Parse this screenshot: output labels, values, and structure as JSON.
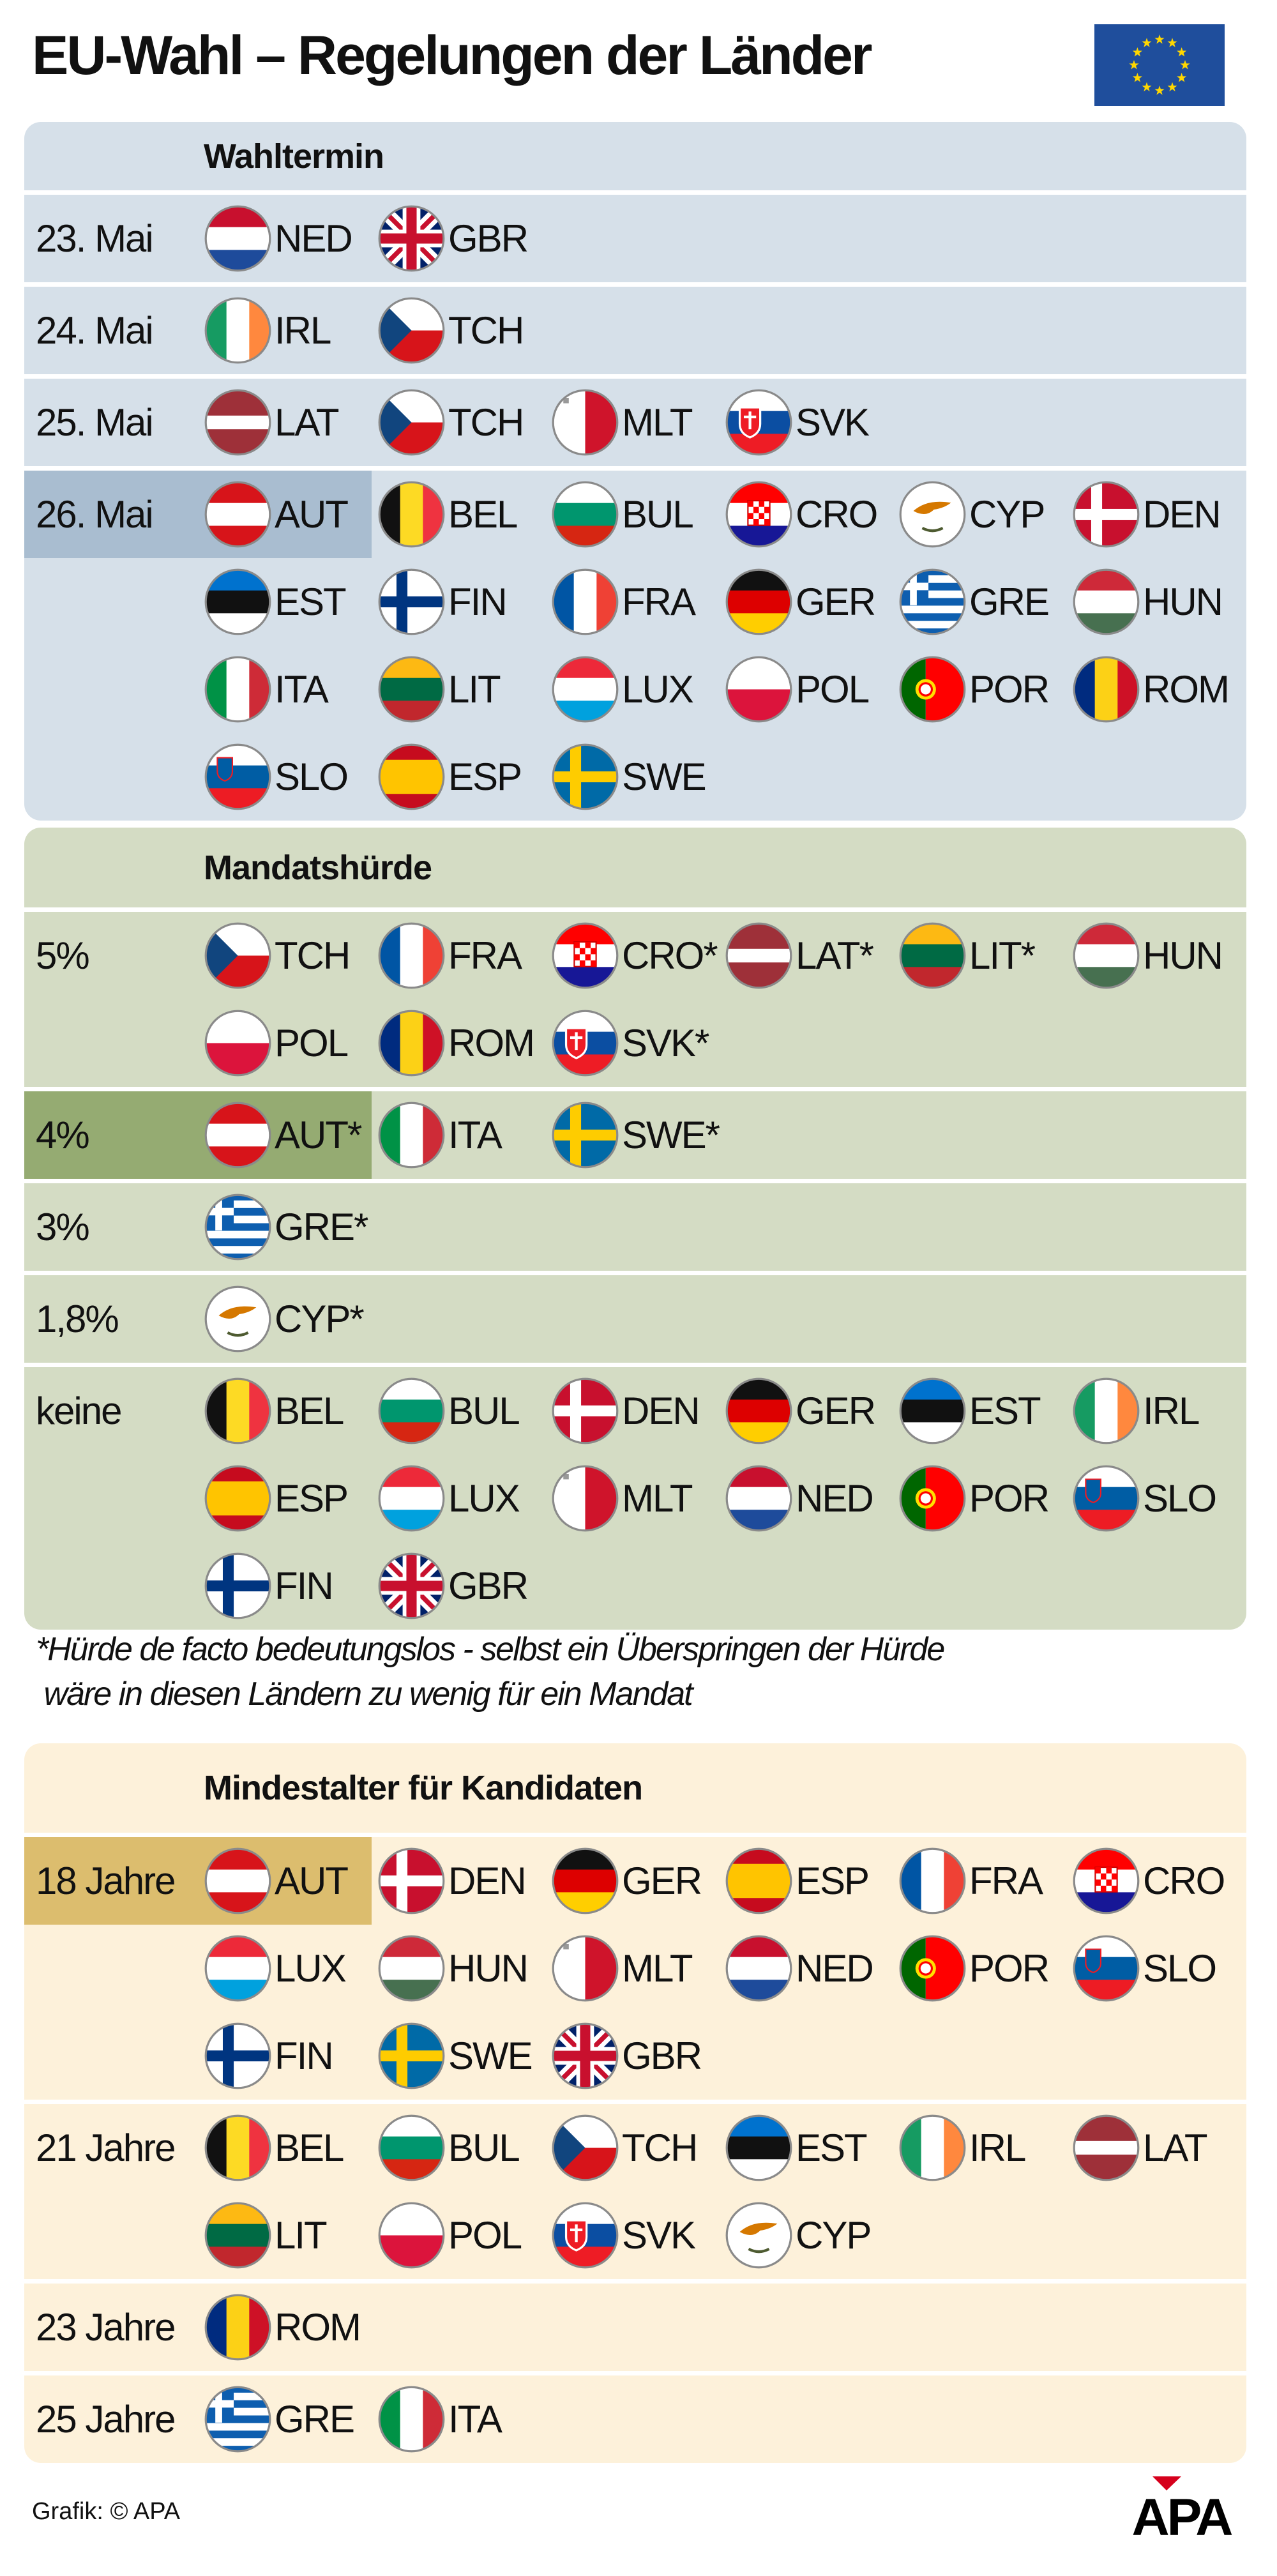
{
  "title": "EU-Wahl – Regelungen der Länder",
  "sections": [
    {
      "heading": "Wahltermin",
      "bg": "#d6e0e9",
      "highlight": "#a9bdd0",
      "rows": [
        {
          "label": "23. Mai",
          "countries": [
            "NED",
            "GBR"
          ]
        },
        {
          "label": "24. Mai",
          "countries": [
            "IRL",
            "TCH"
          ]
        },
        {
          "label": "25. Mai",
          "countries": [
            "LAT",
            "TCH",
            "MLT",
            "SVK"
          ]
        },
        {
          "label": "26. Mai",
          "highlighted": true,
          "countries": [
            "AUT",
            "BEL",
            "BUL",
            "CRO",
            "CYP",
            "DEN",
            "EST",
            "FIN",
            "FRA",
            "GER",
            "GRE",
            "HUN",
            "ITA",
            "LIT",
            "LUX",
            "POL",
            "POR",
            "ROM",
            "SLO",
            "ESP",
            "SWE"
          ]
        }
      ]
    },
    {
      "heading": "Mandatshürde",
      "bg": "#d4dcc4",
      "highlight": "#95ab72",
      "rows": [
        {
          "label": "5%",
          "countries": [
            "TCH",
            "FRA",
            "CRO*",
            "LAT*",
            "LIT*",
            "HUN",
            "POL",
            "ROM",
            "SVK*"
          ]
        },
        {
          "label": "4%",
          "highlighted": true,
          "countries": [
            "AUT*",
            "ITA",
            "SWE*"
          ]
        },
        {
          "label": "3%",
          "countries": [
            "GRE*"
          ]
        },
        {
          "label": "1,8%",
          "countries": [
            "CYP*"
          ]
        },
        {
          "label": "keine",
          "countries": [
            "BEL",
            "BUL",
            "DEN",
            "GER",
            "EST",
            "IRL",
            "ESP",
            "LUX",
            "MLT",
            "NED",
            "POR",
            "SLO",
            "FIN",
            "GBR"
          ]
        }
      ]
    },
    {
      "heading": "Mindestalter für Kandidaten",
      "bg": "#fdf1da",
      "highlight": "#dcbd6e",
      "rows": [
        {
          "label": "18 Jahre",
          "highlighted": true,
          "countries": [
            "AUT",
            "DEN",
            "GER",
            "ESP",
            "FRA",
            "CRO",
            "LUX",
            "HUN",
            "MLT",
            "NED",
            "POR",
            "SLO",
            "FIN",
            "SWE",
            "GBR"
          ]
        },
        {
          "label": "21 Jahre",
          "countries": [
            "BEL",
            "BUL",
            "TCH",
            "EST",
            "IRL",
            "LAT",
            "LIT",
            "POL",
            "SVK",
            "CYP"
          ]
        },
        {
          "label": "23 Jahre",
          "countries": [
            "ROM"
          ]
        },
        {
          "label": "25 Jahre",
          "countries": [
            "GRE",
            "ITA"
          ]
        }
      ]
    }
  ],
  "footnote": [
    "*Hürde de facto bedeutungslos - selbst ein Überspringen der Hürde",
    " wäre in diesen Ländern zu wenig für ein Mandat"
  ],
  "credit": "Grafik: © APA",
  "logo": "APA",
  "icons": {
    "eu_flag": "eu-flag-icon",
    "country_flags": "circular-flag-icons"
  }
}
